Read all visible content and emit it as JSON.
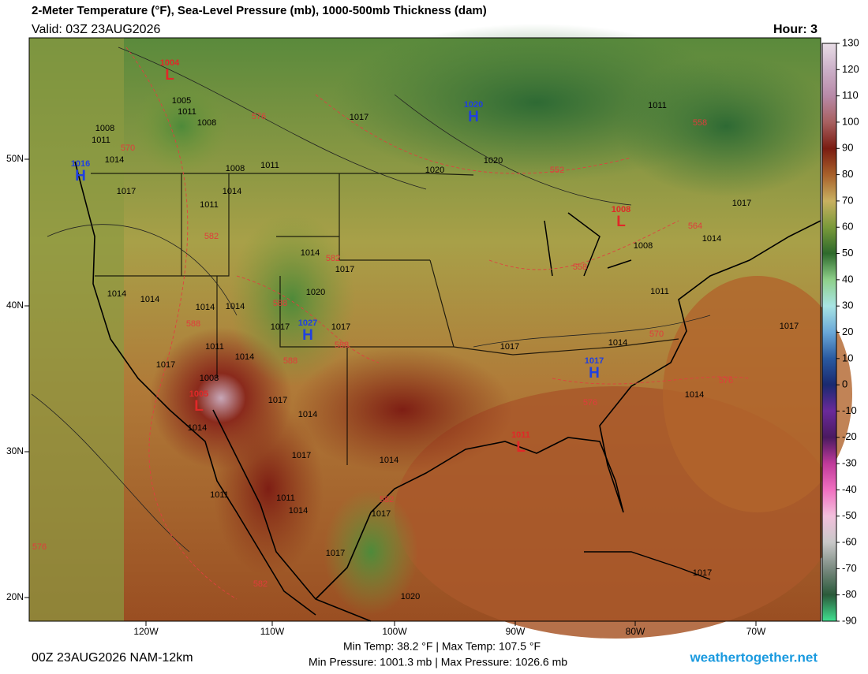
{
  "header": {
    "title": "2-Meter Temperature (°F), Sea-Level Pressure (mb), 1000-500mb Thickness (dam)",
    "valid": "Valid: 03Z 23AUG2026",
    "hour": "Hour: 3"
  },
  "map": {
    "lat_labels": [
      "50N",
      "40N",
      "30N",
      "20N"
    ],
    "lon_labels": [
      "120W",
      "110W",
      "100W",
      "90W",
      "80W",
      "70W"
    ],
    "pressure_centers": [
      {
        "letter": "L",
        "value": 1004,
        "color": "#e02828"
      },
      {
        "letter": "L",
        "value": 1008,
        "color": "#e02828"
      },
      {
        "letter": "L",
        "value": 1005,
        "color": "#e02828"
      },
      {
        "letter": "L",
        "value": 1011,
        "color": "#e02828"
      },
      {
        "letter": "H",
        "value": 1020,
        "color": "#2040e0"
      },
      {
        "letter": "H",
        "value": 1016,
        "color": "#2040e0"
      },
      {
        "letter": "H",
        "value": 1027,
        "color": "#2040e0"
      },
      {
        "letter": "H",
        "value": 1017,
        "color": "#2040e0"
      }
    ],
    "isobar_labels": [
      1005,
      1011,
      1008,
      1008,
      1011,
      1014,
      1008,
      1011,
      1014,
      1011,
      1017,
      1020,
      1020,
      1011,
      1014,
      1017,
      1020,
      1014,
      1014,
      1014,
      1014,
      1017,
      1017,
      1011,
      1014,
      1008,
      1017,
      1017,
      1014,
      1014,
      1017,
      1014,
      1017,
      1014,
      1011,
      1008,
      1014,
      1017,
      1014,
      1011,
      1011,
      1014,
      1017,
      1017,
      1020,
      1017,
      1017,
      1017
    ],
    "thickness_labels": [
      576,
      570,
      582,
      582,
      588,
      588,
      588,
      588,
      552,
      558,
      564,
      558,
      570,
      576,
      576,
      582,
      582,
      576
    ]
  },
  "colorbar": {
    "ticks": [
      130,
      120,
      110,
      100,
      90,
      80,
      70,
      60,
      50,
      40,
      30,
      20,
      10,
      0,
      -10,
      -20,
      -30,
      -40,
      -50,
      -60,
      -70,
      -80,
      -90
    ],
    "colors": [
      "#e8dde6",
      "#cbb0c8",
      "#b88aa8",
      "#a86060",
      "#7a1c12",
      "#a8602a",
      "#c8b060",
      "#7a9a3a",
      "#2e6a2c",
      "#8ed08a",
      "#a8e4e4",
      "#6aa8d8",
      "#2a5aa0",
      "#1a2a70",
      "#6a2a9a",
      "#4a1a60",
      "#c03a9a",
      "#f070c0",
      "#f2c0dc",
      "#c8c8c8",
      "#7a8a80",
      "#2a5a3a",
      "#40e090"
    ]
  },
  "footer": {
    "run": "00Z 23AUG2026 NAM-12km",
    "temp_range": "Min Temp:  38.2 °F | Max Temp: 107.5 °F",
    "pressure_range": "Min Pressure: 1001.3 mb | Max Pressure: 1026.6 mb",
    "site": "weathertogether.net"
  }
}
